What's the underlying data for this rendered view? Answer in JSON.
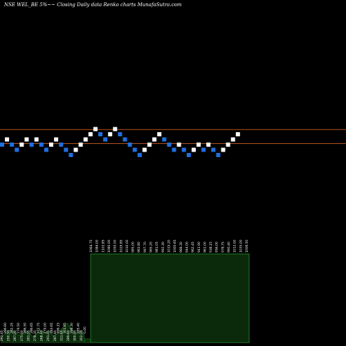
{
  "chart_data": {
    "type": "renko",
    "title": "NSE WEL_BE 5%~~ Closing Daily data Renko charts MunafaSutra.com",
    "colors": {
      "up_brick": "#ffffff",
      "down_brick": "#1e6fe0",
      "reference_line": "#b8541b",
      "volume_fill": "#0b2a0b",
      "volume_edge": "#1f7a1f",
      "background": "#000000"
    },
    "bricks": [
      {
        "level": 1,
        "dir": "down"
      },
      {
        "level": 2,
        "dir": "up"
      },
      {
        "level": 1,
        "dir": "down"
      },
      {
        "level": 0,
        "dir": "down"
      },
      {
        "level": 1,
        "dir": "up"
      },
      {
        "level": 2,
        "dir": "up"
      },
      {
        "level": 1,
        "dir": "down"
      },
      {
        "level": 2,
        "dir": "up"
      },
      {
        "level": 1,
        "dir": "down"
      },
      {
        "level": 0,
        "dir": "down"
      },
      {
        "level": 1,
        "dir": "up"
      },
      {
        "level": 2,
        "dir": "up"
      },
      {
        "level": 1,
        "dir": "down"
      },
      {
        "level": 0,
        "dir": "down"
      },
      {
        "level": -1,
        "dir": "down"
      },
      {
        "level": 0,
        "dir": "up"
      },
      {
        "level": 1,
        "dir": "up"
      },
      {
        "level": 2,
        "dir": "up"
      },
      {
        "level": 3,
        "dir": "up"
      },
      {
        "level": 4,
        "dir": "up"
      },
      {
        "level": 3,
        "dir": "down"
      },
      {
        "level": 2,
        "dir": "down"
      },
      {
        "level": 3,
        "dir": "up"
      },
      {
        "level": 4,
        "dir": "up"
      },
      {
        "level": 3,
        "dir": "down"
      },
      {
        "level": 2,
        "dir": "down"
      },
      {
        "level": 1,
        "dir": "down"
      },
      {
        "level": 0,
        "dir": "down"
      },
      {
        "level": -1,
        "dir": "down"
      },
      {
        "level": 0,
        "dir": "up"
      },
      {
        "level": 1,
        "dir": "up"
      },
      {
        "level": 2,
        "dir": "up"
      },
      {
        "level": 3,
        "dir": "up"
      },
      {
        "level": 2,
        "dir": "down"
      },
      {
        "level": 1,
        "dir": "down"
      },
      {
        "level": 0,
        "dir": "down"
      },
      {
        "level": 1,
        "dir": "up"
      },
      {
        "level": 0,
        "dir": "down"
      },
      {
        "level": -1,
        "dir": "down"
      },
      {
        "level": 0,
        "dir": "up"
      },
      {
        "level": 1,
        "dir": "up"
      },
      {
        "level": 0,
        "dir": "down"
      },
      {
        "level": 1,
        "dir": "up"
      },
      {
        "level": 0,
        "dir": "down"
      },
      {
        "level": -1,
        "dir": "down"
      },
      {
        "level": 0,
        "dir": "up"
      },
      {
        "level": 1,
        "dir": "up"
      },
      {
        "level": 2,
        "dir": "up"
      },
      {
        "level": 3,
        "dir": "up"
      }
    ],
    "reference_lines": [
      {
        "level": 3.9
      },
      {
        "level": 1.2
      }
    ],
    "volume": {
      "left_values": [
        6,
        10,
        14,
        13,
        12,
        8,
        10,
        13,
        11,
        7,
        9,
        15,
        12,
        11,
        13,
        7,
        9,
        14,
        18,
        22,
        17,
        12,
        10,
        14,
        8
      ],
      "main_value": 100,
      "right_value": 4
    },
    "value_labels": {
      "left": [
        "293.45",
        "286.60",
        "290.50",
        "282.25",
        "287.00",
        "279.50",
        "275.00",
        "286.50",
        "281.05",
        "286.65",
        "278.35",
        "272.75",
        "268.45",
        "279.00",
        "291.05",
        "283.65",
        "287.40",
        "296.15",
        "311.65",
        "301.85",
        "289.60",
        "298.30",
        "300.00",
        "285.40",
        "302.05",
        "0.00"
      ],
      "right": [
        "1064.75",
        "1084.00",
        "1102.85",
        "1080.00",
        "1050.00",
        "1029.85",
        "1010.00",
        "985.00",
        "963.80",
        "997.70",
        "965.20",
        "981.05",
        "992.30",
        "1015.20",
        "1000.65",
        "968.30",
        "944.00",
        "962.45",
        "941.90",
        "961.00",
        "938.15",
        "956.00",
        "978.75",
        "990.40",
        "1012.00",
        "1035.00",
        "1006.50"
      ]
    }
  }
}
